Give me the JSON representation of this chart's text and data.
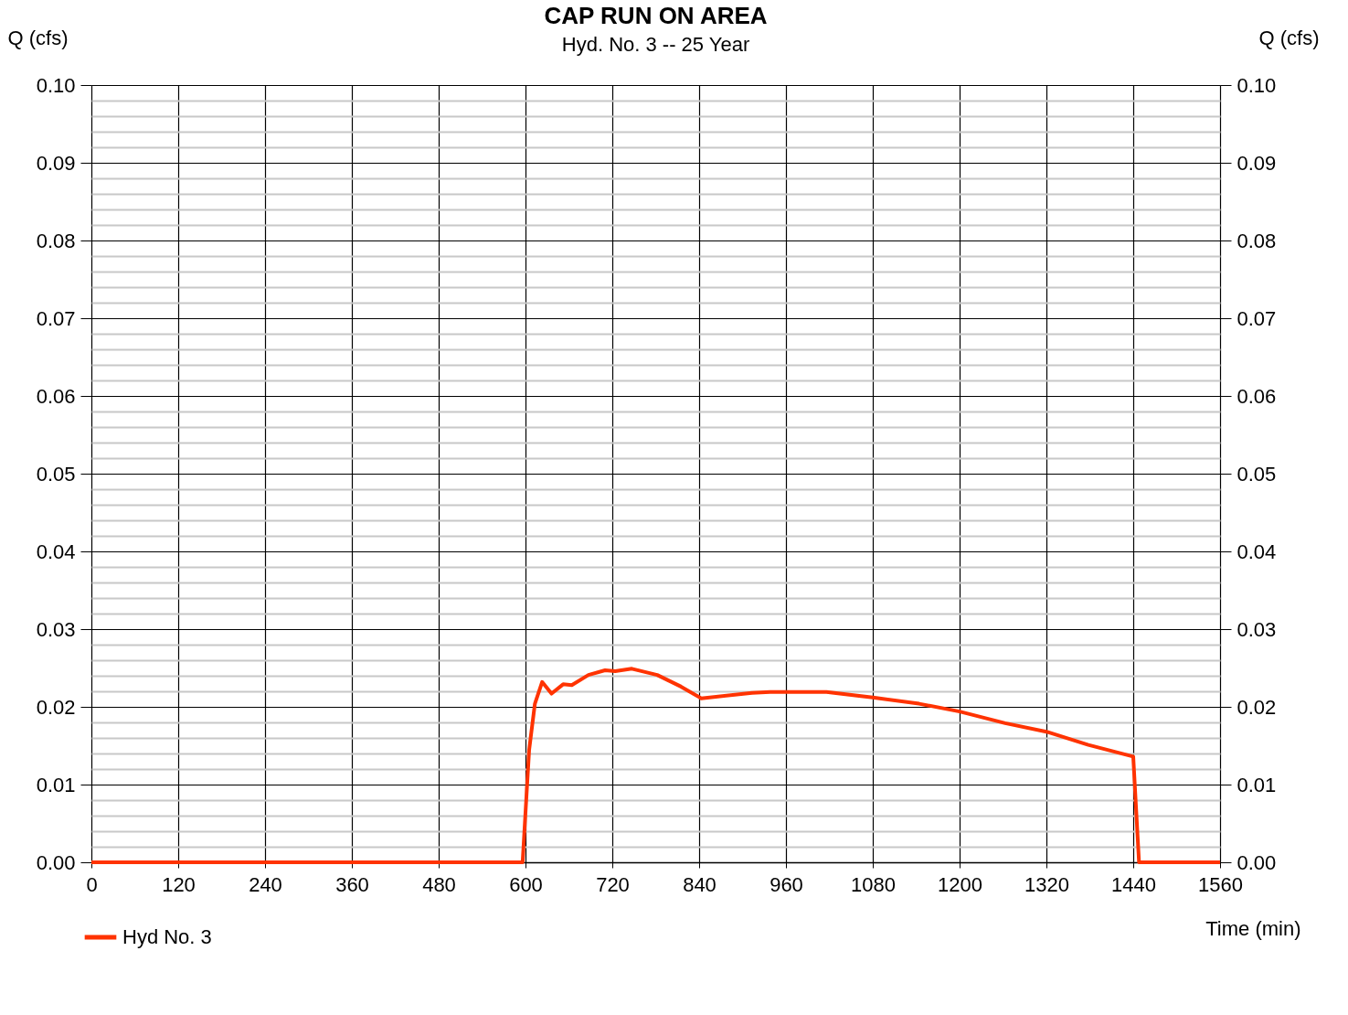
{
  "chart_data": {
    "type": "line",
    "title": "CAP RUN ON AREA",
    "subtitle": "Hyd. No. 3 -- 25 Year",
    "xlabel": "Time (min)",
    "ylabel": "Q (cfs)",
    "y2label": "Q (cfs)",
    "xlim": [
      0,
      1560
    ],
    "xticks": [
      0,
      120,
      240,
      360,
      480,
      600,
      720,
      840,
      960,
      1080,
      1200,
      1320,
      1440,
      1560
    ],
    "ylim": [
      0,
      0.1
    ],
    "yticks": [
      {
        "value": 0,
        "label": "0.00"
      },
      {
        "value": 0.002,
        "label": null
      },
      {
        "value": 0.004,
        "label": null
      },
      {
        "value": 0.006,
        "label": null
      },
      {
        "value": 0.008,
        "label": null
      },
      {
        "value": 0.01,
        "label": "0.01"
      },
      {
        "value": 0.012,
        "label": null
      },
      {
        "value": 0.014,
        "label": null
      },
      {
        "value": 0.016,
        "label": null
      },
      {
        "value": 0.018,
        "label": null
      },
      {
        "value": 0.02,
        "label": "0.02"
      },
      {
        "value": 0.022,
        "label": null
      },
      {
        "value": 0.024,
        "label": null
      },
      {
        "value": 0.026,
        "label": null
      },
      {
        "value": 0.028,
        "label": null
      },
      {
        "value": 0.03,
        "label": "0.03"
      },
      {
        "value": 0.032,
        "label": null
      },
      {
        "value": 0.034,
        "label": null
      },
      {
        "value": 0.036,
        "label": null
      },
      {
        "value": 0.038,
        "label": null
      },
      {
        "value": 0.04,
        "label": "0.04"
      },
      {
        "value": 0.042,
        "label": null
      },
      {
        "value": 0.044,
        "label": null
      },
      {
        "value": 0.046,
        "label": null
      },
      {
        "value": 0.048,
        "label": null
      },
      {
        "value": 0.05,
        "label": "0.05"
      },
      {
        "value": 0.052,
        "label": null
      },
      {
        "value": 0.054,
        "label": null
      },
      {
        "value": 0.056,
        "label": null
      },
      {
        "value": 0.058,
        "label": null
      },
      {
        "value": 0.06,
        "label": "0.06"
      },
      {
        "value": 0.062,
        "label": null
      },
      {
        "value": 0.064,
        "label": null
      },
      {
        "value": 0.066,
        "label": null
      },
      {
        "value": 0.068,
        "label": null
      },
      {
        "value": 0.07,
        "label": "0.07"
      },
      {
        "value": 0.072,
        "label": null
      },
      {
        "value": 0.074,
        "label": null
      },
      {
        "value": 0.076,
        "label": null
      },
      {
        "value": 0.078,
        "label": null
      },
      {
        "value": 0.08,
        "label": "0.08"
      },
      {
        "value": 0.082,
        "label": null
      },
      {
        "value": 0.084,
        "label": null
      },
      {
        "value": 0.086,
        "label": null
      },
      {
        "value": 0.088,
        "label": null
      },
      {
        "value": 0.09,
        "label": "0.09"
      },
      {
        "value": 0.092,
        "label": null
      },
      {
        "value": 0.094,
        "label": null
      },
      {
        "value": 0.096,
        "label": null
      },
      {
        "value": 0.098,
        "label": null
      },
      {
        "value": 0.1,
        "label": "0.10"
      }
    ],
    "y2lim": [
      0,
      0.1
    ],
    "y2ticks": [
      {
        "value": 0,
        "label": "0.00"
      },
      {
        "value": 0.01,
        "label": "0.01"
      },
      {
        "value": 0.02,
        "label": "0.02"
      },
      {
        "value": 0.03,
        "label": "0.03"
      },
      {
        "value": 0.04,
        "label": "0.04"
      },
      {
        "value": 0.05,
        "label": "0.05"
      },
      {
        "value": 0.06,
        "label": "0.06"
      },
      {
        "value": 0.07,
        "label": "0.07"
      },
      {
        "value": 0.08,
        "label": "0.08"
      },
      {
        "value": 0.09,
        "label": "0.09"
      },
      {
        "value": 0.1,
        "label": "0.10"
      }
    ],
    "grid": true,
    "legend": "bottom left",
    "marker": "none",
    "line_style": "solid",
    "series": [
      {
        "name": "Hyd No. 3",
        "color": "#ff3300",
        "x": [
          0,
          120,
          240,
          360,
          480,
          596,
          605,
          613,
          623,
          636,
          652,
          664,
          687,
          710,
          724,
          747,
          782,
          815,
          843,
          913,
          938,
          975,
          1016,
          1080,
          1144,
          1200,
          1263,
          1320,
          1378,
          1440,
          1448,
          1560
        ],
        "values": [
          0,
          0,
          0,
          0,
          0,
          0,
          0.0144,
          0.0204,
          0.0232,
          0.0217,
          0.0229,
          0.0228,
          0.0241,
          0.0247,
          0.0246,
          0.0249,
          0.0241,
          0.0226,
          0.0211,
          0.0218,
          0.0219,
          0.0219,
          0.0219,
          0.0212,
          0.0204,
          0.0194,
          0.0179,
          0.0168,
          0.0151,
          0.0136,
          0,
          0
        ]
      }
    ]
  }
}
